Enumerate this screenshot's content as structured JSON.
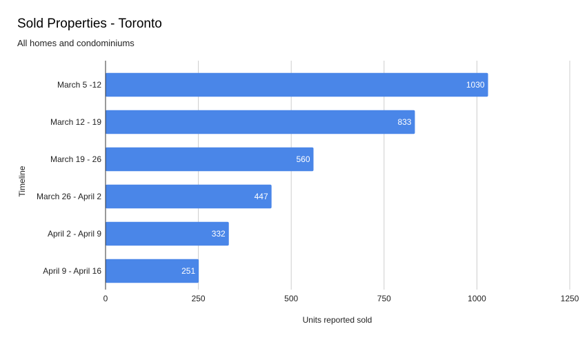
{
  "chart_data": {
    "type": "bar",
    "orientation": "horizontal",
    "title": "Sold Properties - Toronto",
    "subtitle": "All homes and condominiums",
    "xlabel": "Units reported sold",
    "ylabel": "Timeline",
    "categories": [
      "March 5 -12",
      "March 12 - 19",
      "March 19 - 26",
      "March 26 - April 2",
      "April 2 - April 9",
      "April 9 - April 16"
    ],
    "values": [
      1030,
      833,
      560,
      447,
      332,
      251
    ],
    "xlim": [
      0,
      1250
    ],
    "xticks": [
      0,
      250,
      500,
      750,
      1000,
      1250
    ],
    "grid": "vertical",
    "legend": "none",
    "data_labels": "inside-end",
    "colors": {
      "bar": "#4a86e8",
      "grid": "#cccccc",
      "axis": "#333333",
      "label_on_bar": "#ffffff"
    }
  }
}
